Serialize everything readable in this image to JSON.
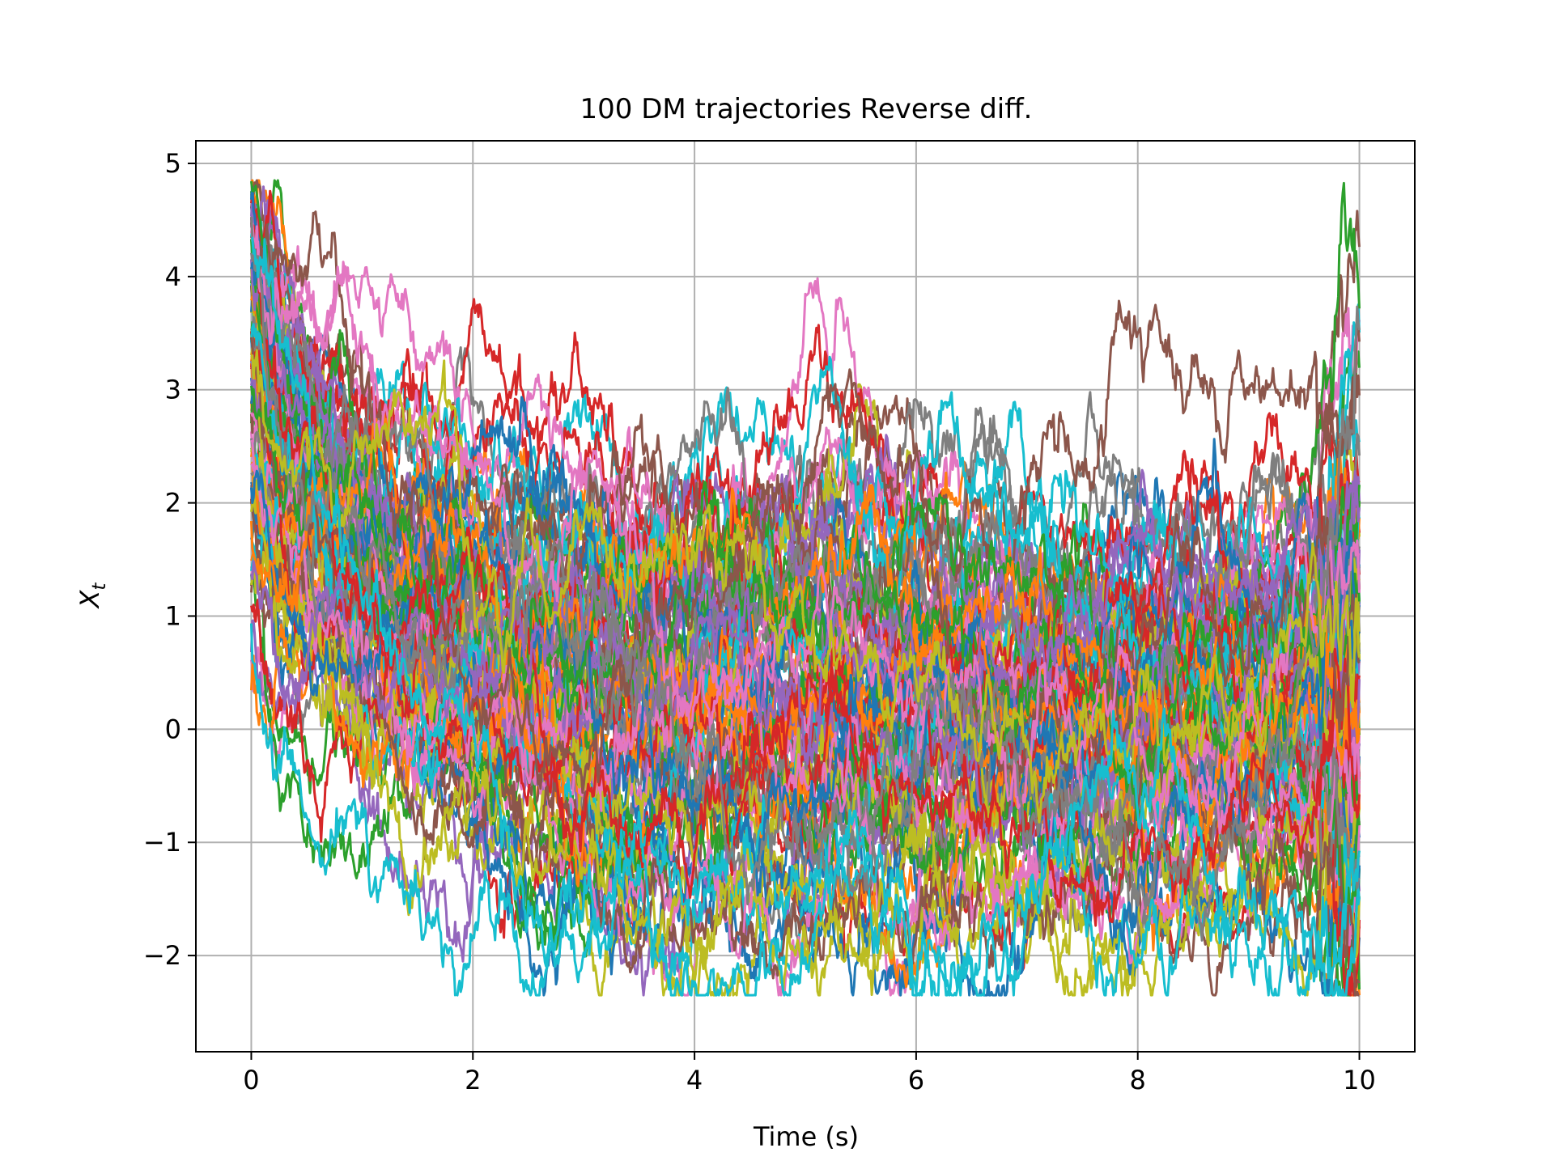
{
  "chart_data": {
    "type": "line",
    "title": "100 DM trajectories Reverse diff.",
    "xlabel": "Time (s)",
    "ylabel": "X_t",
    "ylabel_parts": {
      "base": "X",
      "sub": "t"
    },
    "xlim": [
      -0.5,
      10.5
    ],
    "ylim": [
      -2.85,
      5.2
    ],
    "xticks": [
      0,
      2,
      4,
      6,
      8,
      10
    ],
    "xtick_labels": [
      "0",
      "2",
      "4",
      "6",
      "8",
      "10"
    ],
    "yticks": [
      -2,
      -1,
      0,
      1,
      2,
      3,
      4,
      5
    ],
    "ytick_labels": [
      "−2",
      "−1",
      "0",
      "1",
      "2",
      "3",
      "4",
      "5"
    ],
    "grid": true,
    "legend": false,
    "n_series": 100,
    "t_start": 0,
    "t_end": 10,
    "n_steps": 1000,
    "series_summary": {
      "start_range": [
        0.2,
        4.85
      ],
      "end_range": [
        -2.3,
        2.8
      ],
      "overall_min": -2.35,
      "overall_max": 4.85
    },
    "colors": [
      "#1f77b4",
      "#ff7f0e",
      "#2ca02c",
      "#d62728",
      "#9467bd",
      "#8c564b",
      "#e377c2",
      "#7f7f7f",
      "#bcbd22",
      "#17becf"
    ]
  }
}
